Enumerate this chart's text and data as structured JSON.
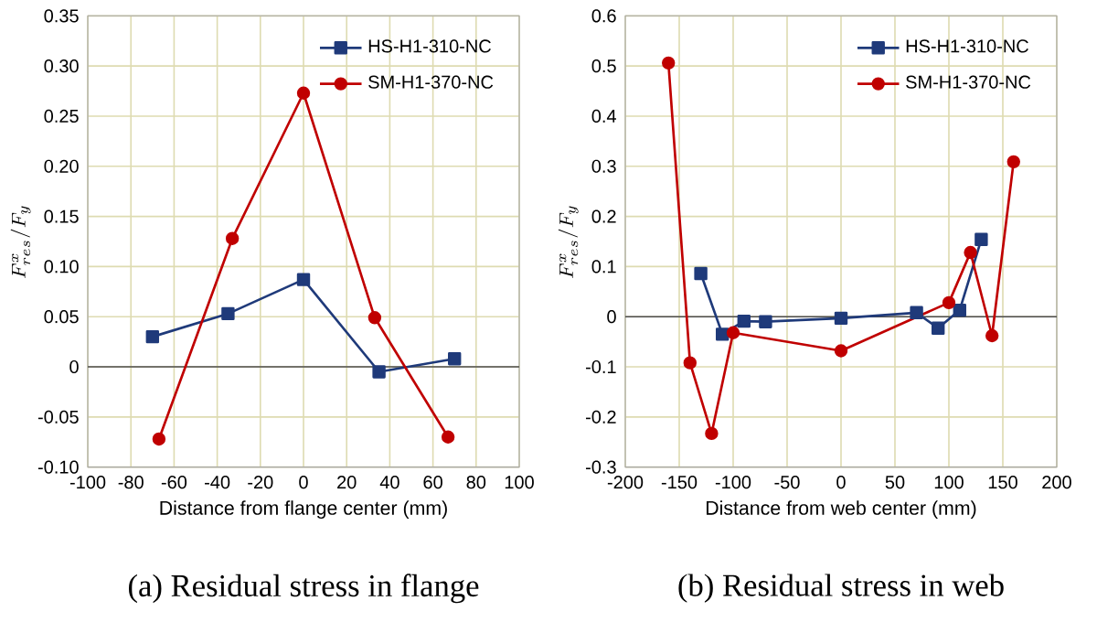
{
  "chart_data": [
    {
      "type": "line",
      "title": "(a) Residual stress in flange",
      "xlabel": "Distance from flange center (mm)",
      "ylabel": "F_{res}^{x}/F_{y}",
      "xlim": [
        -100,
        100
      ],
      "xticks": [
        -100,
        -80,
        -60,
        -40,
        -20,
        0,
        20,
        40,
        60,
        80,
        100
      ],
      "ylim": [
        -0.1,
        0.35
      ],
      "yticks": [
        {
          "value": -0.1,
          "label": "-0.10"
        },
        {
          "value": -0.05,
          "label": "-0.05"
        },
        0,
        {
          "value": 0.05,
          "label": "0.05"
        },
        {
          "value": 0.1,
          "label": "0.10"
        },
        {
          "value": 0.15,
          "label": "0.15"
        },
        {
          "value": 0.2,
          "label": "0.20"
        },
        {
          "value": 0.25,
          "label": "0.25"
        },
        {
          "value": 0.3,
          "label": "0.30"
        },
        {
          "value": 0.35,
          "label": "0.35"
        }
      ],
      "grid": true,
      "legend": "top right",
      "series": [
        {
          "name": "HS-H1-310-NC",
          "color": "#1f3a7a",
          "marker": "square",
          "x": [
            -70,
            -35,
            0,
            35,
            70
          ],
          "values": [
            0.03,
            0.053,
            0.087,
            -0.005,
            0.008
          ]
        },
        {
          "name": "SM-H1-370-NC",
          "color": "#c00000",
          "marker": "circle",
          "x": [
            -67,
            -33,
            0,
            33,
            67
          ],
          "values": [
            -0.072,
            0.128,
            0.273,
            0.049,
            -0.07
          ]
        }
      ]
    },
    {
      "type": "line",
      "title": "(b) Residual stress in web",
      "xlabel": "Distance from web center (mm)",
      "ylabel": "F_{res}^{x}/F_{y}",
      "xlim": [
        -200,
        200
      ],
      "xticks": [
        -200,
        -150,
        -100,
        -50,
        0,
        50,
        100,
        150,
        200
      ],
      "ylim": [
        -0.3,
        0.6
      ],
      "yticks": [
        -0.3,
        -0.2,
        -0.1,
        0,
        0.1,
        0.2,
        0.3,
        0.4,
        0.5,
        0.6
      ],
      "grid": true,
      "legend": "top right",
      "series": [
        {
          "name": "HS-H1-310-NC",
          "color": "#1f3a7a",
          "marker": "square",
          "x": [
            -130,
            -110,
            -90,
            -70,
            0,
            70,
            90,
            110,
            130
          ],
          "values": [
            0.086,
            -0.035,
            -0.009,
            -0.01,
            -0.003,
            0.008,
            -0.023,
            0.013,
            0.154
          ]
        },
        {
          "name": "SM-H1-370-NC",
          "color": "#c00000",
          "marker": "circle",
          "x": [
            -160,
            -140,
            -120,
            -100,
            0,
            100,
            120,
            140,
            160
          ],
          "values": [
            0.506,
            -0.092,
            -0.233,
            -0.032,
            -0.068,
            0.028,
            0.128,
            -0.038,
            0.309
          ]
        }
      ]
    }
  ]
}
